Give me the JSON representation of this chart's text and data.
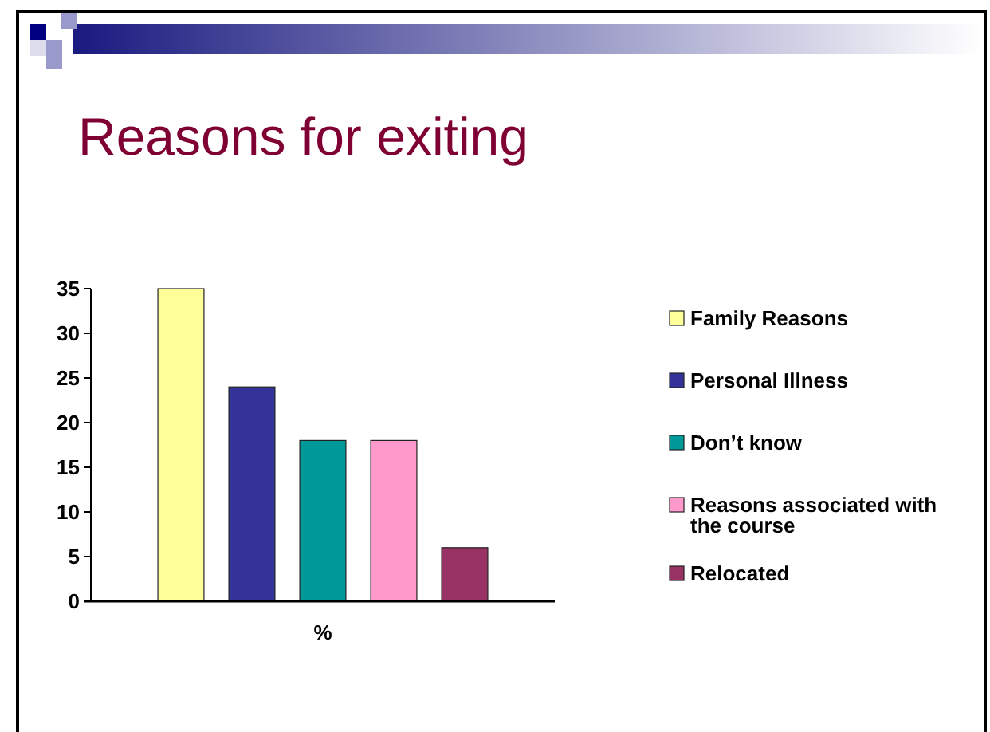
{
  "chart_data": {
    "type": "bar",
    "title": "Reasons for exiting",
    "categories": [
      "%"
    ],
    "series": [
      {
        "name": "Family Reasons",
        "color": "#ffff99",
        "values": [
          35
        ]
      },
      {
        "name": "Personal Illness",
        "color": "#333399",
        "values": [
          24
        ]
      },
      {
        "name": "Don’t know",
        "color": "#009999",
        "values": [
          18
        ]
      },
      {
        "name": "Reasons associated with the course",
        "color": "#ff99cc",
        "values": [
          18
        ]
      },
      {
        "name": "Relocated",
        "color": "#993366",
        "values": [
          6
        ]
      }
    ],
    "ylim": [
      0,
      35
    ],
    "yticks": [
      0,
      5,
      10,
      15,
      20,
      25,
      30,
      35
    ],
    "grid": false,
    "legend": "right"
  }
}
